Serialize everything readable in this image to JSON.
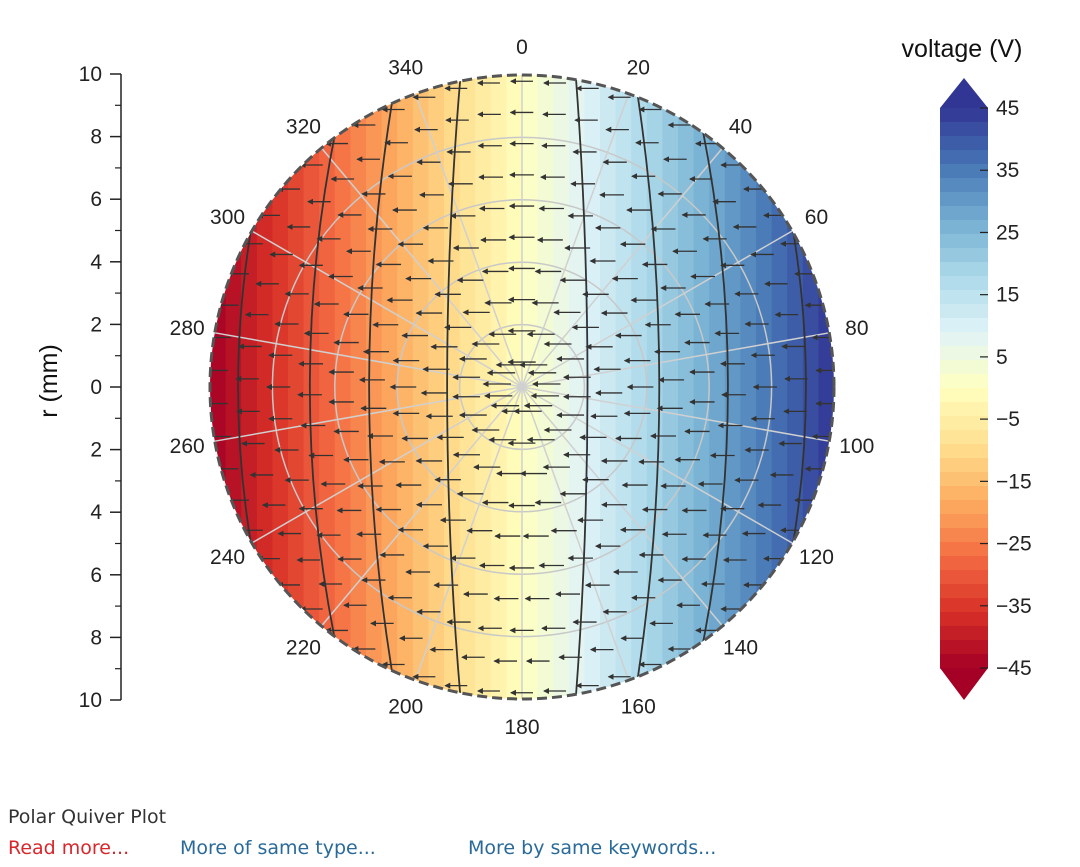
{
  "chart_data": {
    "type": "polar-quiver",
    "r_axis": {
      "label": "r (mm)",
      "range": [
        0,
        10
      ],
      "tick_labels": [
        "10",
        "8",
        "6",
        "4",
        "2",
        "0",
        "2",
        "4",
        "6",
        "8",
        "10"
      ]
    },
    "theta_axis": {
      "unit": "degrees",
      "tick_labels": [
        "0",
        "20",
        "40",
        "60",
        "80",
        "100",
        "120",
        "140",
        "160",
        "180",
        "200",
        "220",
        "240",
        "260",
        "280",
        "300",
        "320",
        "340"
      ]
    },
    "colorbar": {
      "label": "voltage (V)",
      "range": [
        -50,
        50
      ],
      "tick_labels": [
        "45",
        "35",
        "25",
        "15",
        "5",
        "−5",
        "−15",
        "−25",
        "−35",
        "−45"
      ],
      "colormap": "RdYlBu"
    },
    "field": {
      "voltage_min": -50,
      "voltage_max": 50,
      "negative_side_deg": 270,
      "positive_side_deg": 90
    }
  },
  "caption": {
    "title": "Polar Quiver Plot"
  },
  "links": {
    "read_more": "Read more...",
    "same_type": "More of same type...",
    "same_keywords": "More by same keywords..."
  },
  "colors": {
    "read_more": "#d9262b",
    "link": "#2a6a99"
  }
}
